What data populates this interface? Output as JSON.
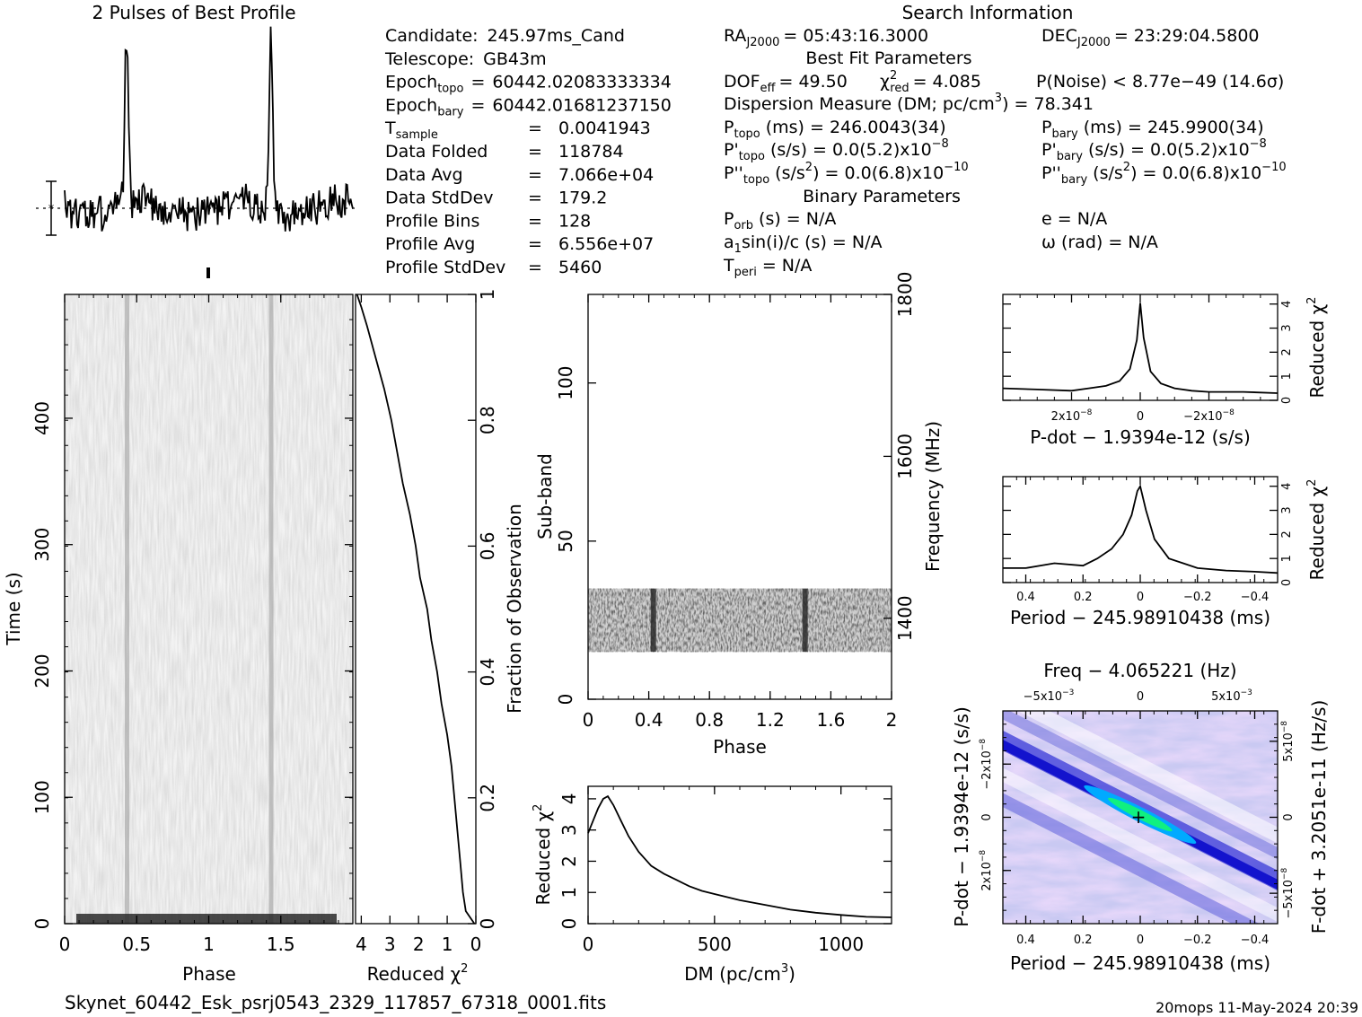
{
  "header": {
    "profile_title": "2 Pulses of Best Profile",
    "search_title": "Search Information",
    "best_fit_title": "Best Fit Parameters",
    "binary_title": "Binary Parameters",
    "footer_file": "Skynet_60442_Esk_psrj0543_2329_117857_67318_0001.fits",
    "footer_stamp": "20mops 11-May-2024 20:39"
  },
  "info_left": [
    {
      "label": "Candidate:",
      "sub": "",
      "eq": "",
      "value": "245.97ms_Cand"
    },
    {
      "label": "Telescope:",
      "sub": "",
      "eq": "",
      "value": "GB43m"
    },
    {
      "label": "Epoch",
      "sub": "topo",
      "eq": "=",
      "value": "60442.02083333334"
    },
    {
      "label": "Epoch",
      "sub": "bary",
      "eq": "=",
      "value": "60442.01681237150"
    },
    {
      "label": "T",
      "sub": "sample",
      "eq": "=",
      "value": "0.0041943"
    },
    {
      "label": "Data Folded",
      "sub": "",
      "eq": "=",
      "value": "118784"
    },
    {
      "label": "Data Avg",
      "sub": "",
      "eq": "=",
      "value": "7.066e+04"
    },
    {
      "label": "Data StdDev",
      "sub": "",
      "eq": "=",
      "value": "179.2"
    },
    {
      "label": "Profile Bins",
      "sub": "",
      "eq": "=",
      "value": "128"
    },
    {
      "label": "Profile Avg",
      "sub": "",
      "eq": "=",
      "value": "6.556e+07"
    },
    {
      "label": "Profile StdDev",
      "sub": "",
      "eq": "=",
      "value": "5460"
    }
  ],
  "info": {
    "ra_label": "RA",
    "ra_sub": "J2000",
    "ra_value": "= 05:43:16.3000",
    "dec_label": "DEC",
    "dec_sub": "J2000",
    "dec_value": "= 23:29:04.5800",
    "dof_label": "DOF",
    "dof_sub": "eff",
    "dof_value": "= 49.50",
    "chi_label": "χ",
    "chi_sup": "2",
    "chi_sub": "red",
    "chi_value": "= 4.085",
    "pnoise": "P(Noise) < 8.77e−49  (14.6σ)",
    "dm_text": "Dispersion Measure (DM; pc/cm",
    "dm_sup": "3",
    "dm_value": ") = 78.341",
    "ptopo_label": "P",
    "ptopo_sub": "topo",
    "ptopo_value": "(ms) =  246.0043(34)",
    "pbary_label": "P",
    "pbary_sub": "bary",
    "pbary_value": "(ms) =  245.9900(34)",
    "pdtopo_label": "P'",
    "pdtopo_sub": "topo",
    "pdtopo_value": "(s/s) = 0.0(5.2)x10",
    "pdtopo_exp": "−8",
    "pdbary_label": "P'",
    "pdbary_sub": "bary",
    "pdbary_value": "(s/s) = 0.0(5.2)x10",
    "pdbary_exp": "−8",
    "pddtopo_label": "P''",
    "pddtopo_sub": "topo",
    "pddtopo_value": "(s/s",
    "pddtopo_sup": "2",
    "pddtopo_value2": ") = 0.0(6.8)x10",
    "pddtopo_exp": "−10",
    "pddbary_label": "P''",
    "pddbary_sub": "bary",
    "pddbary_value": "(s/s",
    "pddbary_sup": "2",
    "pddbary_value2": ") = 0.0(6.8)x10",
    "pddbary_exp": "−10",
    "porb_label": "P",
    "porb_sub": "orb",
    "porb_value": "(s) = N/A",
    "e_value": "e = N/A",
    "a1_label": "a",
    "a1_sub": "1",
    "a1_value": "sin(i)/c (s) = N/A",
    "omega_value": "ω (rad) = N/A",
    "tperi_label": "T",
    "tperi_sub": "peri",
    "tperi_value": "= N/A"
  },
  "chart_data": [
    {
      "type": "line",
      "name": "profile",
      "title": "2 Pulses of Best Profile",
      "x_range": [
        0,
        2
      ],
      "baseline": 0.2,
      "errbar_sigma": 0.22,
      "peaks": [
        {
          "x": 0.43,
          "height": 1.0
        },
        {
          "x": 1.43,
          "height": 1.0
        }
      ]
    },
    {
      "type": "heatmap",
      "name": "time-phase",
      "xlabel": "Phase",
      "ylabel": "Time (s)",
      "x_ticks": [
        "0",
        "0.5",
        "1",
        "1.5"
      ],
      "x_tick_values": [
        0,
        0.5,
        1,
        1.5
      ],
      "y_ticks": [
        "0",
        "100",
        "200",
        "300",
        "400"
      ],
      "y_tick_values": [
        0,
        100,
        200,
        300,
        400
      ],
      "xlim": [
        0,
        2
      ],
      "ylim": [
        0,
        498
      ]
    },
    {
      "type": "line",
      "name": "chi-vs-fraction",
      "xlabel": "Reduced χ",
      "xlabel_sup": "2",
      "ylabel": "Fraction of Observation",
      "x_ticks": [
        "4",
        "3",
        "2",
        "1",
        "0"
      ],
      "x_tick_values": [
        4,
        3,
        2,
        1,
        0
      ],
      "y_ticks": [
        "0",
        "0.2",
        "0.4",
        "0.6",
        "0.8",
        "1"
      ],
      "y_tick_values": [
        0,
        0.2,
        0.4,
        0.6,
        0.8,
        1
      ],
      "xlim": [
        4.2,
        0
      ],
      "ylim": [
        0,
        1
      ],
      "fraction": [
        0,
        0.01,
        0.02,
        0.05,
        0.1,
        0.15,
        0.2,
        0.25,
        0.3,
        0.35,
        0.4,
        0.45,
        0.5,
        0.55,
        0.6,
        0.65,
        0.7,
        0.75,
        0.8,
        0.85,
        0.9,
        0.95,
        0.98,
        1.0
      ],
      "chi": [
        0.05,
        0.2,
        0.35,
        0.45,
        0.55,
        0.65,
        0.75,
        0.85,
        1.0,
        1.2,
        1.35,
        1.55,
        1.7,
        1.95,
        2.1,
        2.3,
        2.55,
        2.75,
        2.95,
        3.2,
        3.5,
        3.8,
        4.0,
        4.15
      ]
    },
    {
      "type": "heatmap",
      "name": "subband-phase",
      "xlabel": "Phase",
      "ylabel": "Sub-band",
      "y2label": "Frequency (MHz)",
      "x_ticks": [
        "0",
        "0.4",
        "0.8",
        "1.2",
        "1.6",
        "2"
      ],
      "x_tick_values": [
        0,
        0.4,
        0.8,
        1.2,
        1.6,
        2
      ],
      "y_ticks": [
        "0",
        "50",
        "100"
      ],
      "y_tick_values": [
        0,
        50,
        100
      ],
      "y2_ticks": [
        "1400",
        "1600",
        "1800"
      ],
      "y2_tick_values": [
        1400,
        1600,
        1800
      ],
      "xlim": [
        0,
        2
      ],
      "ylim": [
        0,
        128
      ],
      "y2lim": [
        1300,
        1800
      ],
      "band_subbands": [
        15,
        35
      ],
      "pulse_phases": [
        0.43,
        1.43
      ]
    },
    {
      "type": "line",
      "name": "dm-curve",
      "xlabel": "DM (pc/cm",
      "xlabel_sup": "3",
      "xlabel_end": ")",
      "ylabel": "Reduced χ",
      "ylabel_sup": "2",
      "x_ticks": [
        "0",
        "500",
        "1000"
      ],
      "x_tick_values": [
        0,
        500,
        1000
      ],
      "y_ticks": [
        "0",
        "1",
        "2",
        "3",
        "4"
      ],
      "y_tick_values": [
        0,
        1,
        2,
        3,
        4
      ],
      "xlim": [
        0,
        1200
      ],
      "ylim": [
        0,
        4.4
      ],
      "x": [
        0,
        20,
        40,
        60,
        78,
        100,
        130,
        160,
        200,
        250,
        300,
        350,
        400,
        450,
        500,
        600,
        700,
        800,
        900,
        1000,
        1100,
        1200
      ],
      "y": [
        2.9,
        3.3,
        3.7,
        4.0,
        4.08,
        3.8,
        3.3,
        2.8,
        2.3,
        1.85,
        1.6,
        1.4,
        1.2,
        1.05,
        0.95,
        0.75,
        0.6,
        0.45,
        0.35,
        0.28,
        0.22,
        0.2
      ]
    },
    {
      "type": "line",
      "name": "pdot-curve",
      "xlabel": "P-dot − 1.9394e-12 (s/s)",
      "ylabel": "Reduced χ",
      "ylabel_sup": "2",
      "x_ticks": [
        "2x10",
        "0",
        "−2x10"
      ],
      "x_tick_exp": "−8",
      "x_tick_values": [
        2e-08,
        0,
        -2e-08
      ],
      "y_ticks": [
        "0",
        "1",
        "2",
        "3",
        "4"
      ],
      "y_tick_values": [
        0,
        1,
        2,
        3,
        4
      ],
      "xlim": [
        4e-08,
        -4e-08
      ],
      "ylim": [
        0,
        4.4
      ],
      "x": [
        4e-08,
        3e-08,
        2e-08,
        1.5e-08,
        1e-08,
        6e-09,
        3e-09,
        1e-09,
        0,
        -1e-09,
        -3e-09,
        -6e-09,
        -1e-08,
        -1.5e-08,
        -2e-08,
        -3e-08,
        -4e-08
      ],
      "y": [
        0.5,
        0.45,
        0.4,
        0.5,
        0.6,
        0.8,
        1.3,
        2.5,
        4.05,
        2.6,
        1.2,
        0.7,
        0.5,
        0.4,
        0.35,
        0.35,
        0.3
      ]
    },
    {
      "type": "line",
      "name": "period-curve",
      "xlabel": "Period − 245.98910438 (ms)",
      "ylabel": "Reduced χ",
      "ylabel_sup": "2",
      "x_ticks": [
        "0.4",
        "0.2",
        "0",
        "−0.2",
        "−0.4"
      ],
      "x_tick_values": [
        0.4,
        0.2,
        0,
        -0.2,
        -0.4
      ],
      "y_ticks": [
        "0",
        "1",
        "2",
        "3",
        "4"
      ],
      "y_tick_values": [
        0,
        1,
        2,
        3,
        4
      ],
      "xlim": [
        0.48,
        -0.48
      ],
      "ylim": [
        0,
        4.4
      ],
      "x": [
        0.48,
        0.4,
        0.3,
        0.2,
        0.15,
        0.1,
        0.06,
        0.03,
        0.01,
        0,
        -0.02,
        -0.05,
        -0.1,
        -0.15,
        -0.2,
        -0.3,
        -0.4,
        -0.48
      ],
      "y": [
        0.6,
        0.6,
        0.8,
        0.7,
        1.0,
        1.4,
        2.0,
        2.8,
        3.8,
        4.0,
        3.0,
        1.8,
        1.0,
        0.8,
        0.6,
        0.5,
        0.45,
        0.4
      ]
    },
    {
      "type": "heatmap",
      "name": "period-pdot-plane",
      "title": "Freq − 4.065221 (Hz)",
      "xlabel": "Period − 245.98910438 (ms)",
      "ylabel": "P-dot − 1.9394e-12 (s/s)",
      "y2label": "F-dot + 3.2051e-11 (Hz/s)",
      "x_ticks": [
        "0.4",
        "0.2",
        "0",
        "−0.2",
        "−0.4"
      ],
      "x_tick_values": [
        0.4,
        0.2,
        0,
        -0.2,
        -0.4
      ],
      "top_ticks": [
        "−5x10",
        "0",
        "5x10"
      ],
      "top_tick_exp": "−3",
      "top_tick_values": [
        -0.005,
        0,
        0.005
      ],
      "y_ticks": [
        "−2x10",
        "0",
        "2x10"
      ],
      "y_tick_exp": "−8",
      "y_tick_values": [
        -2e-08,
        0,
        2e-08
      ],
      "y2_ticks": [
        "5x10",
        "0",
        "−5x10"
      ],
      "y2_tick_exp": "−8",
      "y2_tick_values": [
        5e-08,
        0,
        -5e-08
      ],
      "xlim": [
        0.48,
        -0.48
      ],
      "ylim": [
        -4e-08,
        4e-08
      ]
    }
  ]
}
